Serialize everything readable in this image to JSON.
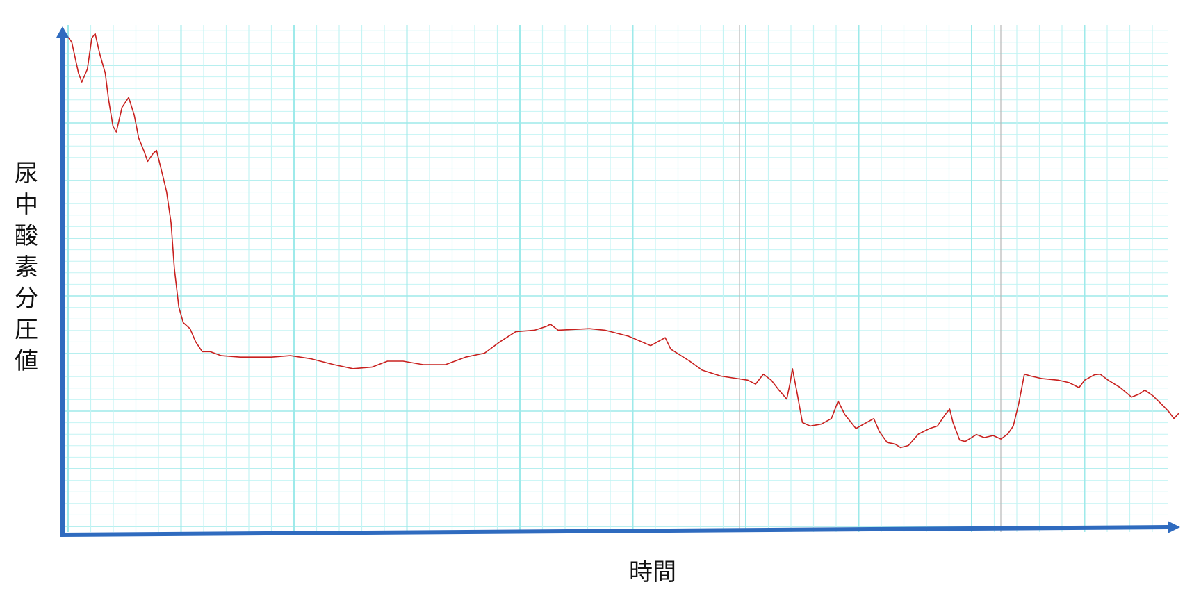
{
  "chart_data": {
    "type": "line",
    "title": "",
    "xlabel": "時間",
    "ylabel": "尿中酸素分圧値",
    "xlim": [
      0,
      100
    ],
    "ylim": [
      0,
      100
    ],
    "grid": true,
    "legend": "none",
    "colors": {
      "line": "#c8201e",
      "axis": "#2f6bbf",
      "grid_minor": "#c4f4f4",
      "grid_major": "#9eeaea",
      "grid_gray": "#b8b8b8"
    },
    "series": [
      {
        "x": [
          0.2,
          0.7,
          1.3,
          1.6,
          2.1,
          2.5,
          2.8,
          3.2,
          3.7,
          4.0,
          4.4,
          4.7,
          5.2,
          5.8,
          6.3,
          6.7,
          7.2,
          7.5,
          8.0,
          8.3,
          8.8,
          9.2,
          9.6,
          9.9,
          10.3,
          10.7,
          11.3,
          11.8,
          12.4,
          13.1,
          14.1,
          15.8,
          18.6,
          20.3,
          22.1,
          24.2,
          25.9,
          27.6,
          29.0,
          30.4,
          32.2,
          34.2,
          36.0,
          37.7,
          39.1,
          40.5,
          42.2,
          43.3,
          43.6,
          44.3,
          47.1,
          48.5,
          50.6,
          52.6,
          53.9,
          54.4,
          56.1,
          57.2,
          58.9,
          61.3,
          62.0,
          62.7,
          63.4,
          64.1,
          64.8,
          65.1,
          65.3,
          65.7,
          66.2,
          66.9,
          67.9,
          68.8,
          69.4,
          70.0,
          71.0,
          71.7,
          72.6,
          73.1,
          73.8,
          74.5,
          75.0,
          75.7,
          76.6,
          77.6,
          78.3,
          79.0,
          79.4,
          79.7,
          80.3,
          80.8,
          81.8,
          82.5,
          83.3,
          84.0,
          84.6,
          85.1,
          85.6,
          86.1,
          86.7,
          87.7,
          89.1,
          90.1,
          91.0,
          91.5,
          92.4,
          92.9,
          93.6,
          94.7,
          95.7,
          96.4,
          96.9,
          97.6,
          98.3,
          99.0,
          99.5,
          100
        ],
        "y": [
          99.2,
          97.7,
          91.5,
          89.7,
          92.3,
          98.5,
          99.4,
          95.4,
          91.5,
          86.2,
          80.8,
          79.7,
          84.6,
          86.6,
          83.1,
          78.5,
          75.7,
          73.8,
          75.4,
          76.0,
          71.5,
          67.7,
          61.5,
          52.3,
          44.6,
          41.5,
          40.3,
          37.7,
          35.7,
          35.7,
          34.9,
          34.6,
          34.6,
          34.9,
          34.3,
          33.1,
          32.3,
          32.6,
          33.8,
          33.8,
          33.1,
          33.1,
          34.6,
          35.4,
          37.7,
          39.7,
          40.0,
          40.8,
          41.2,
          40.0,
          40.3,
          40.0,
          38.8,
          36.9,
          38.5,
          36.2,
          33.8,
          32.0,
          30.8,
          30.0,
          29.2,
          31.2,
          30.0,
          28.0,
          26.2,
          29.5,
          32.3,
          27.7,
          21.5,
          20.8,
          21.2,
          22.3,
          25.8,
          23.1,
          20.3,
          21.2,
          22.3,
          19.7,
          17.5,
          17.2,
          16.5,
          16.9,
          19.2,
          20.3,
          20.8,
          23.1,
          24.2,
          21.5,
          18.0,
          17.7,
          19.1,
          18.5,
          18.9,
          18.2,
          19.2,
          20.8,
          25.4,
          31.2,
          30.8,
          30.3,
          30.0,
          29.5,
          28.5,
          30.0,
          31.1,
          31.2,
          30.0,
          28.5,
          26.6,
          27.2,
          28.0,
          26.9,
          25.4,
          23.8,
          22.3,
          23.5
        ]
      }
    ]
  }
}
